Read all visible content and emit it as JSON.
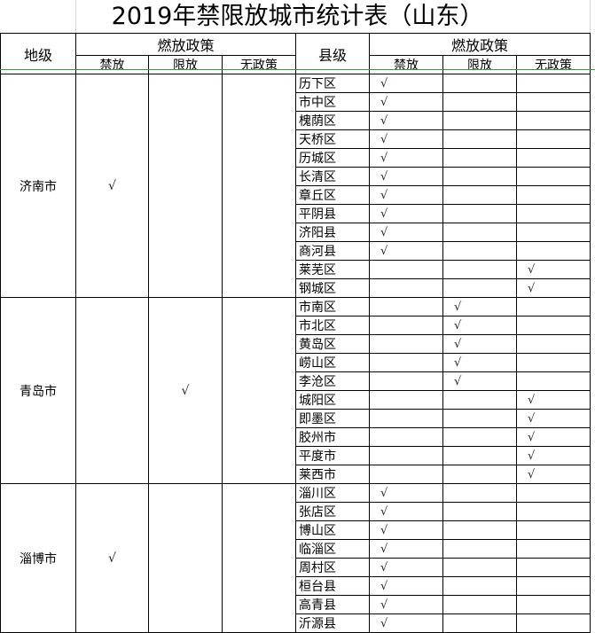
{
  "title": "2019年禁限放城市统计表（山东）",
  "headers": {
    "prefecture": "地级",
    "policy_group": "燃放政策",
    "county": "县级",
    "ban": "禁放",
    "limit": "限放",
    "none": "无政策"
  },
  "check_symbol": "√",
  "policy_columns": [
    "禁放",
    "限放",
    "无政策"
  ],
  "cities": [
    {
      "name": "济南市",
      "policy": "禁放",
      "counties": [
        {
          "name": "历下区",
          "policy": "禁放"
        },
        {
          "name": "市中区",
          "policy": "禁放"
        },
        {
          "name": "槐荫区",
          "policy": "禁放"
        },
        {
          "name": "天桥区",
          "policy": "禁放"
        },
        {
          "name": "历城区",
          "policy": "禁放"
        },
        {
          "name": "长清区",
          "policy": "禁放"
        },
        {
          "name": "章丘区",
          "policy": "禁放"
        },
        {
          "name": "平阴县",
          "policy": "禁放"
        },
        {
          "name": "济阳县",
          "policy": "禁放"
        },
        {
          "name": "商河县",
          "policy": "禁放"
        },
        {
          "name": "莱芜区",
          "policy": "无政策"
        },
        {
          "name": "钢城区",
          "policy": "无政策"
        }
      ]
    },
    {
      "name": "青岛市",
      "policy": "限放",
      "counties": [
        {
          "name": "市南区",
          "policy": "限放"
        },
        {
          "name": "市北区",
          "policy": "限放"
        },
        {
          "name": "黄岛区",
          "policy": "限放"
        },
        {
          "name": "崂山区",
          "policy": "限放"
        },
        {
          "name": "李沧区",
          "policy": "限放"
        },
        {
          "name": "城阳区",
          "policy": "无政策"
        },
        {
          "name": "即墨区",
          "policy": "无政策"
        },
        {
          "name": "胶州市",
          "policy": "无政策"
        },
        {
          "name": "平度市",
          "policy": "无政策"
        },
        {
          "name": "莱西市",
          "policy": "无政策"
        }
      ]
    },
    {
      "name": "淄博市",
      "policy": "禁放",
      "counties": [
        {
          "name": "淄川区",
          "policy": "禁放"
        },
        {
          "name": "张店区",
          "policy": "禁放"
        },
        {
          "name": "博山区",
          "policy": "禁放"
        },
        {
          "name": "临淄区",
          "policy": "禁放"
        },
        {
          "name": "周村区",
          "policy": "禁放"
        },
        {
          "name": "桓台县",
          "policy": "禁放"
        },
        {
          "name": "高青县",
          "policy": "禁放"
        },
        {
          "name": "沂源县",
          "policy": "禁放"
        }
      ]
    }
  ]
}
